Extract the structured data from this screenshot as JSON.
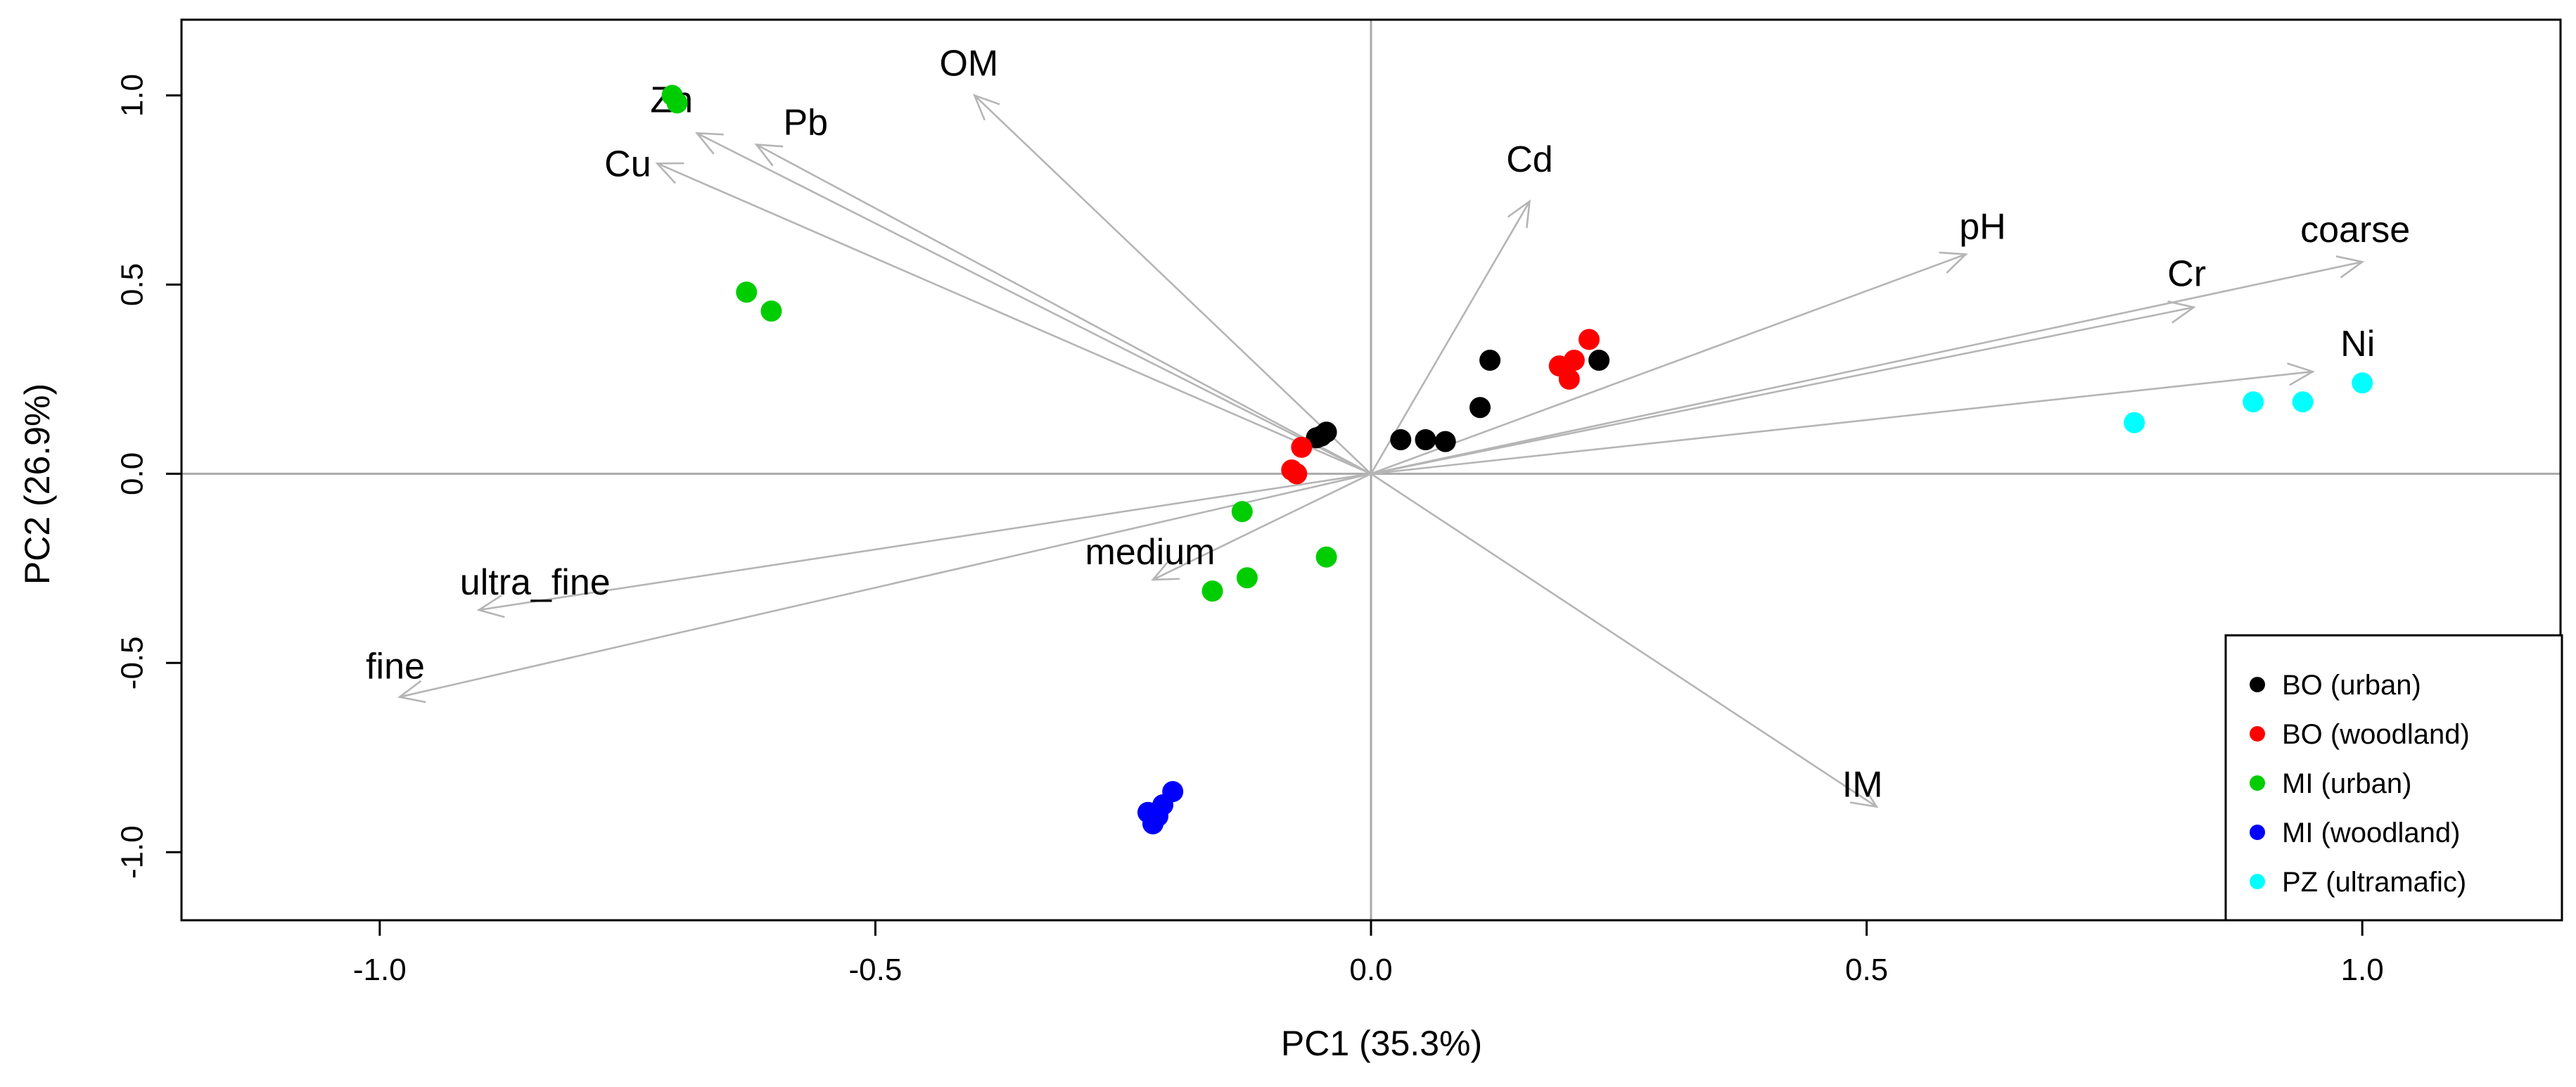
{
  "chart_data": {
    "type": "scatter",
    "subtype": "pca-biplot",
    "title": "",
    "xlabel": "PC1 (35.3%)",
    "ylabel": "PC2 (26.9%)",
    "xlim": [
      -1.2,
      1.2
    ],
    "ylim": [
      -1.18,
      1.2
    ],
    "xticks": [
      -1.0,
      -0.5,
      0.0,
      0.5,
      1.0
    ],
    "xtick_labels": [
      "-1.0",
      "-0.5",
      "0.0",
      "0.5",
      "1.0"
    ],
    "yticks": [
      -1.0,
      -0.5,
      0.0,
      0.5,
      1.0
    ],
    "ytick_labels": [
      "-1.0",
      "-0.5",
      "0.0",
      "0.5",
      "1.0"
    ],
    "reference_lines": {
      "x": 0,
      "y": 0
    },
    "legend_position": "bottom-right",
    "series": [
      {
        "name": "BO (urban)",
        "color": "#000000",
        "points": [
          [
            -0.05,
            0.1
          ],
          [
            -0.045,
            0.11
          ],
          [
            -0.055,
            0.095
          ],
          [
            0.03,
            0.09
          ],
          [
            0.055,
            0.09
          ],
          [
            0.075,
            0.085
          ],
          [
            0.11,
            0.175
          ],
          [
            0.12,
            0.3
          ],
          [
            0.23,
            0.3
          ]
        ]
      },
      {
        "name": "BO (woodland)",
        "color": "#ff0000",
        "points": [
          [
            -0.07,
            0.07
          ],
          [
            -0.08,
            0.01
          ],
          [
            -0.075,
            0.0
          ],
          [
            0.19,
            0.285
          ],
          [
            0.205,
            0.3
          ],
          [
            0.22,
            0.355
          ],
          [
            0.2,
            0.25
          ]
        ]
      },
      {
        "name": "MI (urban)",
        "color": "#00cd00",
        "points": [
          [
            -0.705,
            1.0
          ],
          [
            -0.7,
            0.98
          ],
          [
            -0.63,
            0.48
          ],
          [
            -0.605,
            0.43
          ],
          [
            -0.13,
            -0.1
          ],
          [
            -0.045,
            -0.22
          ],
          [
            -0.125,
            -0.275
          ],
          [
            -0.16,
            -0.31
          ]
        ]
      },
      {
        "name": "MI (woodland)",
        "color": "#0000ff",
        "points": [
          [
            -0.2,
            -0.84
          ],
          [
            -0.21,
            -0.875
          ],
          [
            -0.225,
            -0.895
          ],
          [
            -0.215,
            -0.905
          ],
          [
            -0.22,
            -0.925
          ]
        ]
      },
      {
        "name": "PZ (ultramafic)",
        "color": "#00ffff",
        "points": [
          [
            0.77,
            0.135
          ],
          [
            0.89,
            0.19
          ],
          [
            0.94,
            0.19
          ],
          [
            1.0,
            0.24
          ]
        ]
      }
    ],
    "loadings": [
      {
        "name": "OM",
        "x": -0.4,
        "y": 1.0
      },
      {
        "name": "Zn",
        "x": -0.68,
        "y": 0.9
      },
      {
        "name": "Pb",
        "x": -0.62,
        "y": 0.87
      },
      {
        "name": "Cu",
        "x": -0.72,
        "y": 0.82
      },
      {
        "name": "Cd",
        "x": 0.16,
        "y": 0.72
      },
      {
        "name": "pH",
        "x": 0.6,
        "y": 0.58
      },
      {
        "name": "coarse",
        "x": 1.0,
        "y": 0.56
      },
      {
        "name": "Cr",
        "x": 0.83,
        "y": 0.44
      },
      {
        "name": "Ni",
        "x": 0.95,
        "y": 0.27
      },
      {
        "name": "ultra_fine",
        "x": -0.9,
        "y": -0.36
      },
      {
        "name": "fine",
        "x": -0.98,
        "y": -0.59
      },
      {
        "name": "medium",
        "x": -0.22,
        "y": -0.28
      },
      {
        "name": "IM",
        "x": 0.51,
        "y": -0.88
      }
    ]
  }
}
